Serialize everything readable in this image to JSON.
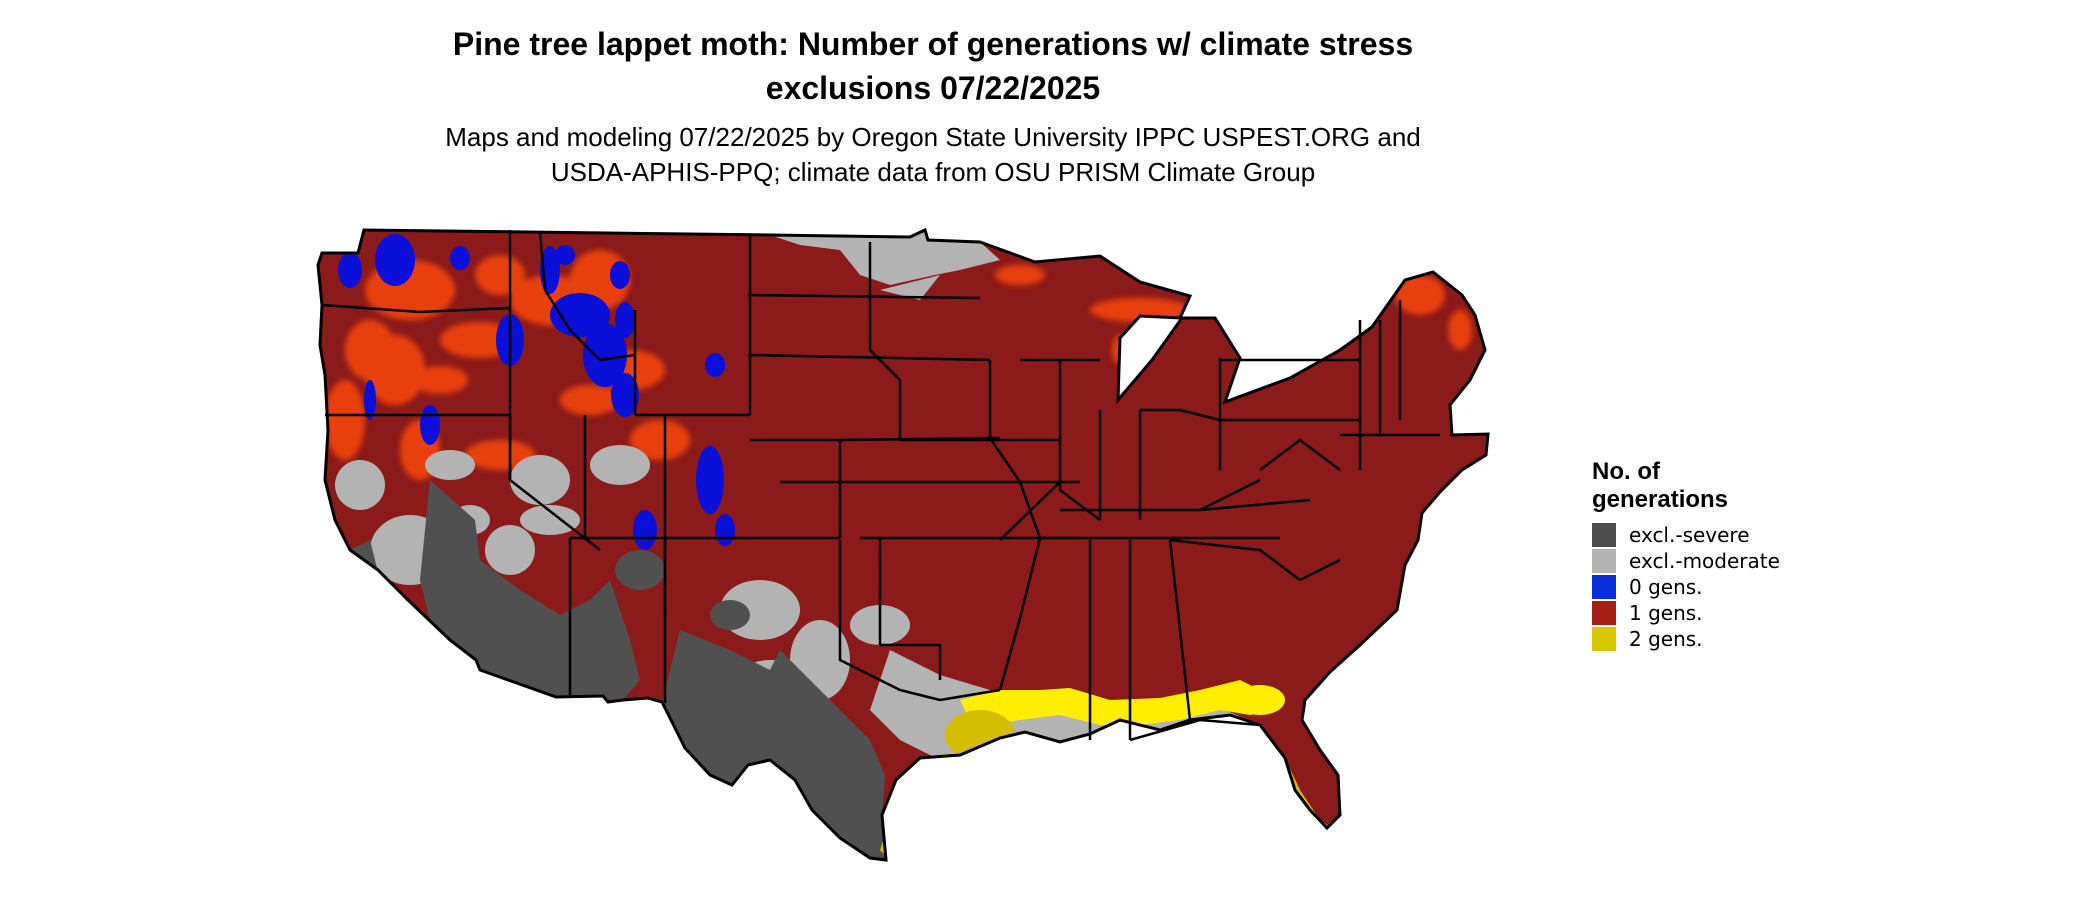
{
  "title_line1": "Pine tree lappet moth: Number of generations w/ climate stress",
  "title_line2": "exclusions 07/22/2025",
  "subtitle_line1": "Maps and modeling 07/22/2025 by Oregon State University IPPC USPEST.ORG and",
  "subtitle_line2": "USDA-APHIS-PPQ; climate data from OSU PRISM Climate Group",
  "legend": {
    "title_line1": "No. of",
    "title_line2": "generations",
    "items": [
      {
        "label": "excl.-severe",
        "color": "#4d4d4d"
      },
      {
        "label": "excl.-moderate",
        "color": "#b3b3b3"
      },
      {
        "label": "0 gens.",
        "color": "#0a2fd8"
      },
      {
        "label": "1 gens.",
        "color": "#a31e14"
      },
      {
        "label": "2 gens.",
        "color": "#d8c800"
      }
    ]
  },
  "map_colors": {
    "one_gen": "#8b1a1a",
    "orange_patches": "#e8400c",
    "yellow_band": "#ffee00",
    "gold_coast": "#d4bc00",
    "blue_patches": "#0a10d8",
    "gray_moderate": "#b3b3b3",
    "gray_severe": "#505050",
    "borders": "#000000"
  }
}
